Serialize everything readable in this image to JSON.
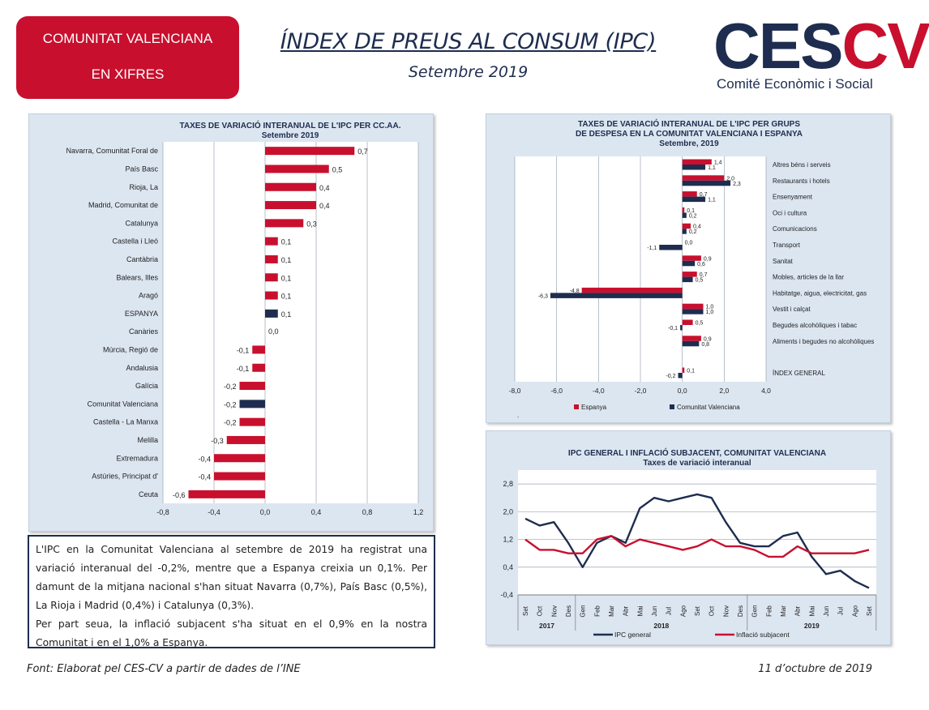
{
  "header": {
    "badge_line1": "COMUNITAT VALENCIANA",
    "badge_line2": "EN XIFRES",
    "title": "ÍNDEX DE PREUS AL CONSUM (IPC)",
    "subtitle": "Setembre 2019",
    "logo_part1": "CES",
    "logo_part2": "CV",
    "logo_sub": "Comité Econòmic i Social"
  },
  "colors": {
    "red": "#c8102e",
    "navy": "#1e2d4f",
    "panel_bg": "#dce6f1",
    "plot_bg": "#ffffff"
  },
  "chart_data": [
    {
      "type": "bar",
      "orientation": "horizontal",
      "title": "TAXES DE VARIACIÓ INTERANUAL DE L'IPC PER CC.AA.",
      "subtitle": "Setembre 2019",
      "categories": [
        "Navarra, Comunitat Foral de",
        "País Basc",
        "Rioja, La",
        "Madrid, Comunitat de",
        "Catalunya",
        "Castella i Lleó",
        "Cantàbria",
        "Balears, Illes",
        "Aragó",
        "ESPANYA",
        "Canàries",
        "Múrcia, Regió de",
        "Andalusia",
        "Galícia",
        "Comunitat Valenciana",
        "Castella - La Manxa",
        "Melilla",
        "Extremadura",
        "Astúries, Principat d'",
        "Ceuta"
      ],
      "values": [
        0.7,
        0.5,
        0.4,
        0.4,
        0.3,
        0.1,
        0.1,
        0.1,
        0.1,
        0.1,
        0.0,
        -0.1,
        -0.1,
        -0.2,
        -0.2,
        -0.2,
        -0.3,
        -0.4,
        -0.4,
        -0.6
      ],
      "value_labels": [
        "0,7",
        "0,5",
        "0,4",
        "0,4",
        "0,3",
        "0,1",
        "0,1",
        "0,1",
        "0,1",
        "0,1",
        "0,0",
        "-0,1",
        "-0,1",
        "-0,2",
        "-0,2",
        "-0,2",
        "-0,3",
        "-0,4",
        "-0,4",
        "-0,6"
      ],
      "highlight": {
        "ESPANYA": "#1e2d4f",
        "Comunitat Valenciana": "#1e2d4f"
      },
      "xlim": [
        -0.8,
        1.2
      ],
      "xticks": [
        "-0,8",
        "-0,4",
        "0,0",
        "0,4",
        "0,8",
        "1,2"
      ],
      "grid": true
    },
    {
      "type": "bar",
      "orientation": "horizontal",
      "title_line1": "TAXES DE VARIACIÓ INTERANUAL DE L'IPC PER GRUPS",
      "title_line2": "DE DESPESA EN LA COMUNITAT VALENCIANA I ESPANYA",
      "subtitle": "Setembre, 2019",
      "categories": [
        "Altres béns i serveis",
        "Restaurants i hotels",
        "Ensenyament",
        "Oci i cultura",
        "Comunicacions",
        "Transport",
        "Sanitat",
        "Mobles, articles de la llar",
        "Habitatge, aigua, electricitat, gas",
        "Vestit i calçat",
        "Begudes alcohòliques i tabac",
        "Aliments i begudes no alcohòliques",
        "ÍNDEX GENERAL"
      ],
      "series": [
        {
          "name": "Espanya",
          "color": "#c8102e",
          "values": [
            1.4,
            2.0,
            0.7,
            0.1,
            0.4,
            0.0,
            0.9,
            0.7,
            -4.8,
            1.0,
            0.5,
            0.9,
            0.1
          ],
          "labels": [
            "1,4",
            "2,0",
            "0,7",
            "0,1",
            "0,4",
            "0,0",
            "0,9",
            "0,7",
            "-4,8",
            "1,0",
            "0,5",
            "0,9",
            "0,1"
          ]
        },
        {
          "name": "Comunitat Valenciana",
          "color": "#1e2d4f",
          "values": [
            1.1,
            2.3,
            1.1,
            0.2,
            0.2,
            -1.1,
            0.6,
            0.5,
            -6.3,
            1.0,
            -0.1,
            0.8,
            -0.2
          ],
          "labels": [
            "1,1",
            "2,3",
            "1,1",
            "0,2",
            "0,2",
            "-1,1",
            "0,6",
            "0,5",
            "-6,3",
            "1,0",
            "-0,1",
            "0,8",
            "-0,2"
          ]
        }
      ],
      "xlim": [
        -8.0,
        4.0
      ],
      "xticks": [
        "-8,0",
        "-6,0",
        "-4,0",
        "-2,0",
        "0,0",
        "2,0",
        "4,0"
      ],
      "legend_position": "bottom",
      "grid": true,
      "note": "."
    },
    {
      "type": "line",
      "title": "IPC GENERAL I INFLACIÓ SUBJACENT, COMUNITAT VALENCIANA",
      "subtitle": "Taxes de variació interanual",
      "x": [
        "Set",
        "Oct",
        "Nov",
        "Des",
        "Gen",
        "Feb",
        "Mar",
        "Abr",
        "Mai",
        "Jun",
        "Jul",
        "Ago",
        "Set",
        "Oct",
        "Nov",
        "Des",
        "Gen",
        "Feb",
        "Mar",
        "Abr",
        "Mai",
        "Jun",
        "Jul",
        "Ago",
        "Set"
      ],
      "year_groups": [
        {
          "label": "2017",
          "start": 0,
          "end": 3
        },
        {
          "label": "2018",
          "start": 4,
          "end": 15
        },
        {
          "label": "2019",
          "start": 16,
          "end": 24
        }
      ],
      "series": [
        {
          "name": "IPC general",
          "color": "#1e2d4f",
          "values": [
            1.8,
            1.6,
            1.7,
            1.1,
            0.4,
            1.1,
            1.3,
            1.1,
            2.1,
            2.4,
            2.3,
            2.4,
            2.5,
            2.4,
            1.7,
            1.1,
            1.0,
            1.0,
            1.3,
            1.4,
            0.7,
            0.2,
            0.3,
            0.0,
            -0.2
          ]
        },
        {
          "name": "Inflació subjacent",
          "color": "#c8102e",
          "values": [
            1.2,
            0.9,
            0.9,
            0.8,
            0.8,
            1.2,
            1.3,
            1.0,
            1.2,
            1.1,
            1.0,
            0.9,
            1.0,
            1.2,
            1.0,
            1.0,
            0.9,
            0.7,
            0.7,
            1.0,
            0.8,
            0.8,
            0.8,
            0.8,
            0.9
          ]
        }
      ],
      "ylim": [
        -0.4,
        3.2
      ],
      "yticks": [
        "-0,4",
        "0,4",
        "1,2",
        "2,0",
        "2,8"
      ],
      "legend_position": "bottom",
      "grid": true
    }
  ],
  "text_box": {
    "p1": "L'IPC en la Comunitat Valenciana al setembre de 2019 ha registrat una variació interanual del -0,2%, mentre que a Espanya creixia un 0,1%. Per damunt de la mitjana nacional s'han situat Navarra (0,7%), País Basc (0,5%), La Rioja i Madrid (0,4%) i Catalunya (0,3%).",
    "p2": "Per part seua, la inflació subjacent s'ha situat en el 0,9% en la nostra Comunitat i en el 1,0% a Espanya."
  },
  "footer": {
    "source": "Font: Elaborat pel CES-CV a partir de dades de l’INE",
    "date": "11 d’octubre de 2019"
  }
}
